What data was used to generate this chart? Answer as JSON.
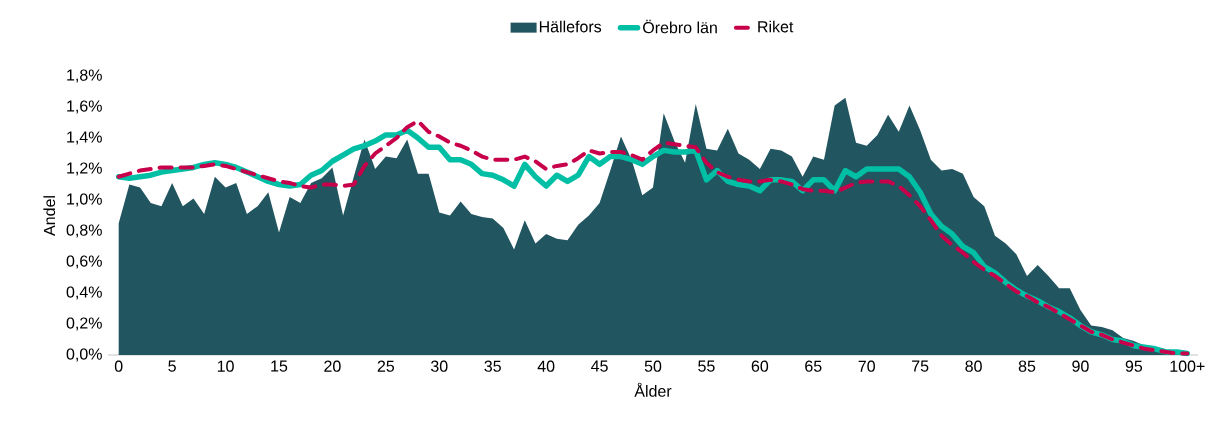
{
  "chart_data": {
    "type": "area",
    "xlabel": "Ålder",
    "ylabel": "Andel",
    "legend": "top",
    "categories": [
      "0",
      null,
      null,
      null,
      null,
      "5",
      null,
      null,
      null,
      null,
      "10",
      null,
      null,
      null,
      null,
      "15",
      null,
      null,
      null,
      null,
      "20",
      null,
      null,
      null,
      null,
      "25",
      null,
      null,
      null,
      null,
      "30",
      null,
      null,
      null,
      null,
      "35",
      null,
      null,
      null,
      null,
      "40",
      null,
      null,
      null,
      null,
      "45",
      null,
      null,
      null,
      null,
      "50",
      null,
      null,
      null,
      null,
      "55",
      null,
      null,
      null,
      null,
      "60",
      null,
      null,
      null,
      null,
      "65",
      null,
      null,
      null,
      null,
      "70",
      null,
      null,
      null,
      null,
      "75",
      null,
      null,
      null,
      null,
      "80",
      null,
      null,
      null,
      null,
      "85",
      null,
      null,
      null,
      null,
      "90",
      null,
      null,
      null,
      null,
      "95",
      null,
      null,
      null,
      null,
      "100+"
    ],
    "ylim": [
      0,
      1.8
    ],
    "yticks": [
      {
        "value": 0,
        "label": "0,0%"
      },
      {
        "value": 0.2,
        "label": "0,2%"
      },
      {
        "value": 0.4,
        "label": "0,4%"
      },
      {
        "value": 0.6,
        "label": "0,6%"
      },
      {
        "value": 0.8,
        "label": "0,8%"
      },
      {
        "value": 1.0,
        "label": "1,0%"
      },
      {
        "value": 1.2,
        "label": "1,2%"
      },
      {
        "value": 1.4,
        "label": "1,4%"
      },
      {
        "value": 1.6,
        "label": "1,6%"
      },
      {
        "value": 1.8,
        "label": "1,8%"
      }
    ],
    "series": [
      {
        "name": "Hällefors",
        "color": "#215560",
        "values": [
          0.85,
          1.1,
          1.08,
          0.98,
          0.96,
          1.11,
          0.96,
          1.01,
          0.91,
          1.15,
          1.08,
          1.11,
          0.91,
          0.96,
          1.05,
          0.79,
          1.02,
          0.98,
          1.11,
          1.14,
          1.21,
          0.9,
          1.15,
          1.39,
          1.2,
          1.28,
          1.27,
          1.39,
          1.17,
          1.17,
          0.92,
          0.9,
          0.99,
          0.91,
          0.89,
          0.88,
          0.82,
          0.68,
          0.87,
          0.72,
          0.78,
          0.75,
          0.74,
          0.84,
          0.9,
          0.98,
          1.19,
          1.41,
          1.26,
          1.03,
          1.08,
          1.56,
          1.38,
          1.24,
          1.62,
          1.33,
          1.32,
          1.46,
          1.3,
          1.26,
          1.2,
          1.33,
          1.32,
          1.28,
          1.15,
          1.28,
          1.26,
          1.61,
          1.66,
          1.37,
          1.35,
          1.42,
          1.55,
          1.44,
          1.61,
          1.45,
          1.26,
          1.19,
          1.2,
          1.17,
          1.02,
          0.96,
          0.77,
          0.72,
          0.65,
          0.51,
          0.58,
          0.51,
          0.43,
          0.43,
          0.29,
          0.19,
          0.18,
          0.16,
          0.11,
          0.09,
          0.06,
          0.04,
          0.03,
          0.02,
          0.02
        ]
      },
      {
        "name": "Örebro län",
        "type": "line",
        "line_style": "solid",
        "color": "#00bfa5",
        "values": [
          1.15,
          1.14,
          1.15,
          1.16,
          1.18,
          1.19,
          1.2,
          1.21,
          1.23,
          1.24,
          1.23,
          1.21,
          1.18,
          1.15,
          1.12,
          1.1,
          1.09,
          1.1,
          1.16,
          1.19,
          1.25,
          1.29,
          1.33,
          1.35,
          1.38,
          1.42,
          1.42,
          1.45,
          1.4,
          1.34,
          1.34,
          1.26,
          1.26,
          1.23,
          1.17,
          1.16,
          1.13,
          1.09,
          1.23,
          1.15,
          1.09,
          1.16,
          1.12,
          1.16,
          1.28,
          1.23,
          1.28,
          1.28,
          1.26,
          1.23,
          1.28,
          1.32,
          1.31,
          1.31,
          1.32,
          1.13,
          1.19,
          1.12,
          1.1,
          1.09,
          1.06,
          1.13,
          1.13,
          1.12,
          1.06,
          1.13,
          1.13,
          1.06,
          1.19,
          1.15,
          1.2,
          1.2,
          1.2,
          1.2,
          1.15,
          1.05,
          0.91,
          0.83,
          0.78,
          0.7,
          0.66,
          0.57,
          0.53,
          0.47,
          0.42,
          0.38,
          0.35,
          0.31,
          0.28,
          0.24,
          0.19,
          0.15,
          0.13,
          0.1,
          0.09,
          0.06,
          0.05,
          0.04,
          0.02,
          0.02,
          0.01
        ]
      },
      {
        "name": "Riket",
        "type": "line",
        "line_style": "dashed",
        "color": "#c8004b",
        "values": [
          1.15,
          1.17,
          1.19,
          1.2,
          1.21,
          1.21,
          1.21,
          1.21,
          1.22,
          1.23,
          1.22,
          1.2,
          1.18,
          1.16,
          1.14,
          1.12,
          1.11,
          1.09,
          1.08,
          1.1,
          1.1,
          1.09,
          1.1,
          1.22,
          1.3,
          1.35,
          1.4,
          1.47,
          1.51,
          1.44,
          1.41,
          1.37,
          1.35,
          1.32,
          1.28,
          1.26,
          1.26,
          1.26,
          1.28,
          1.25,
          1.2,
          1.22,
          1.23,
          1.27,
          1.32,
          1.3,
          1.31,
          1.31,
          1.29,
          1.26,
          1.32,
          1.37,
          1.36,
          1.35,
          1.34,
          1.24,
          1.18,
          1.15,
          1.13,
          1.12,
          1.12,
          1.13,
          1.12,
          1.1,
          1.07,
          1.06,
          1.06,
          1.05,
          1.08,
          1.11,
          1.12,
          1.12,
          1.12,
          1.09,
          1.03,
          0.96,
          0.87,
          0.77,
          0.71,
          0.66,
          0.6,
          0.55,
          0.51,
          0.46,
          0.41,
          0.38,
          0.34,
          0.31,
          0.27,
          0.23,
          0.19,
          0.15,
          0.13,
          0.1,
          0.08,
          0.06,
          0.04,
          0.03,
          0.02,
          0.01,
          0.01
        ]
      }
    ]
  }
}
